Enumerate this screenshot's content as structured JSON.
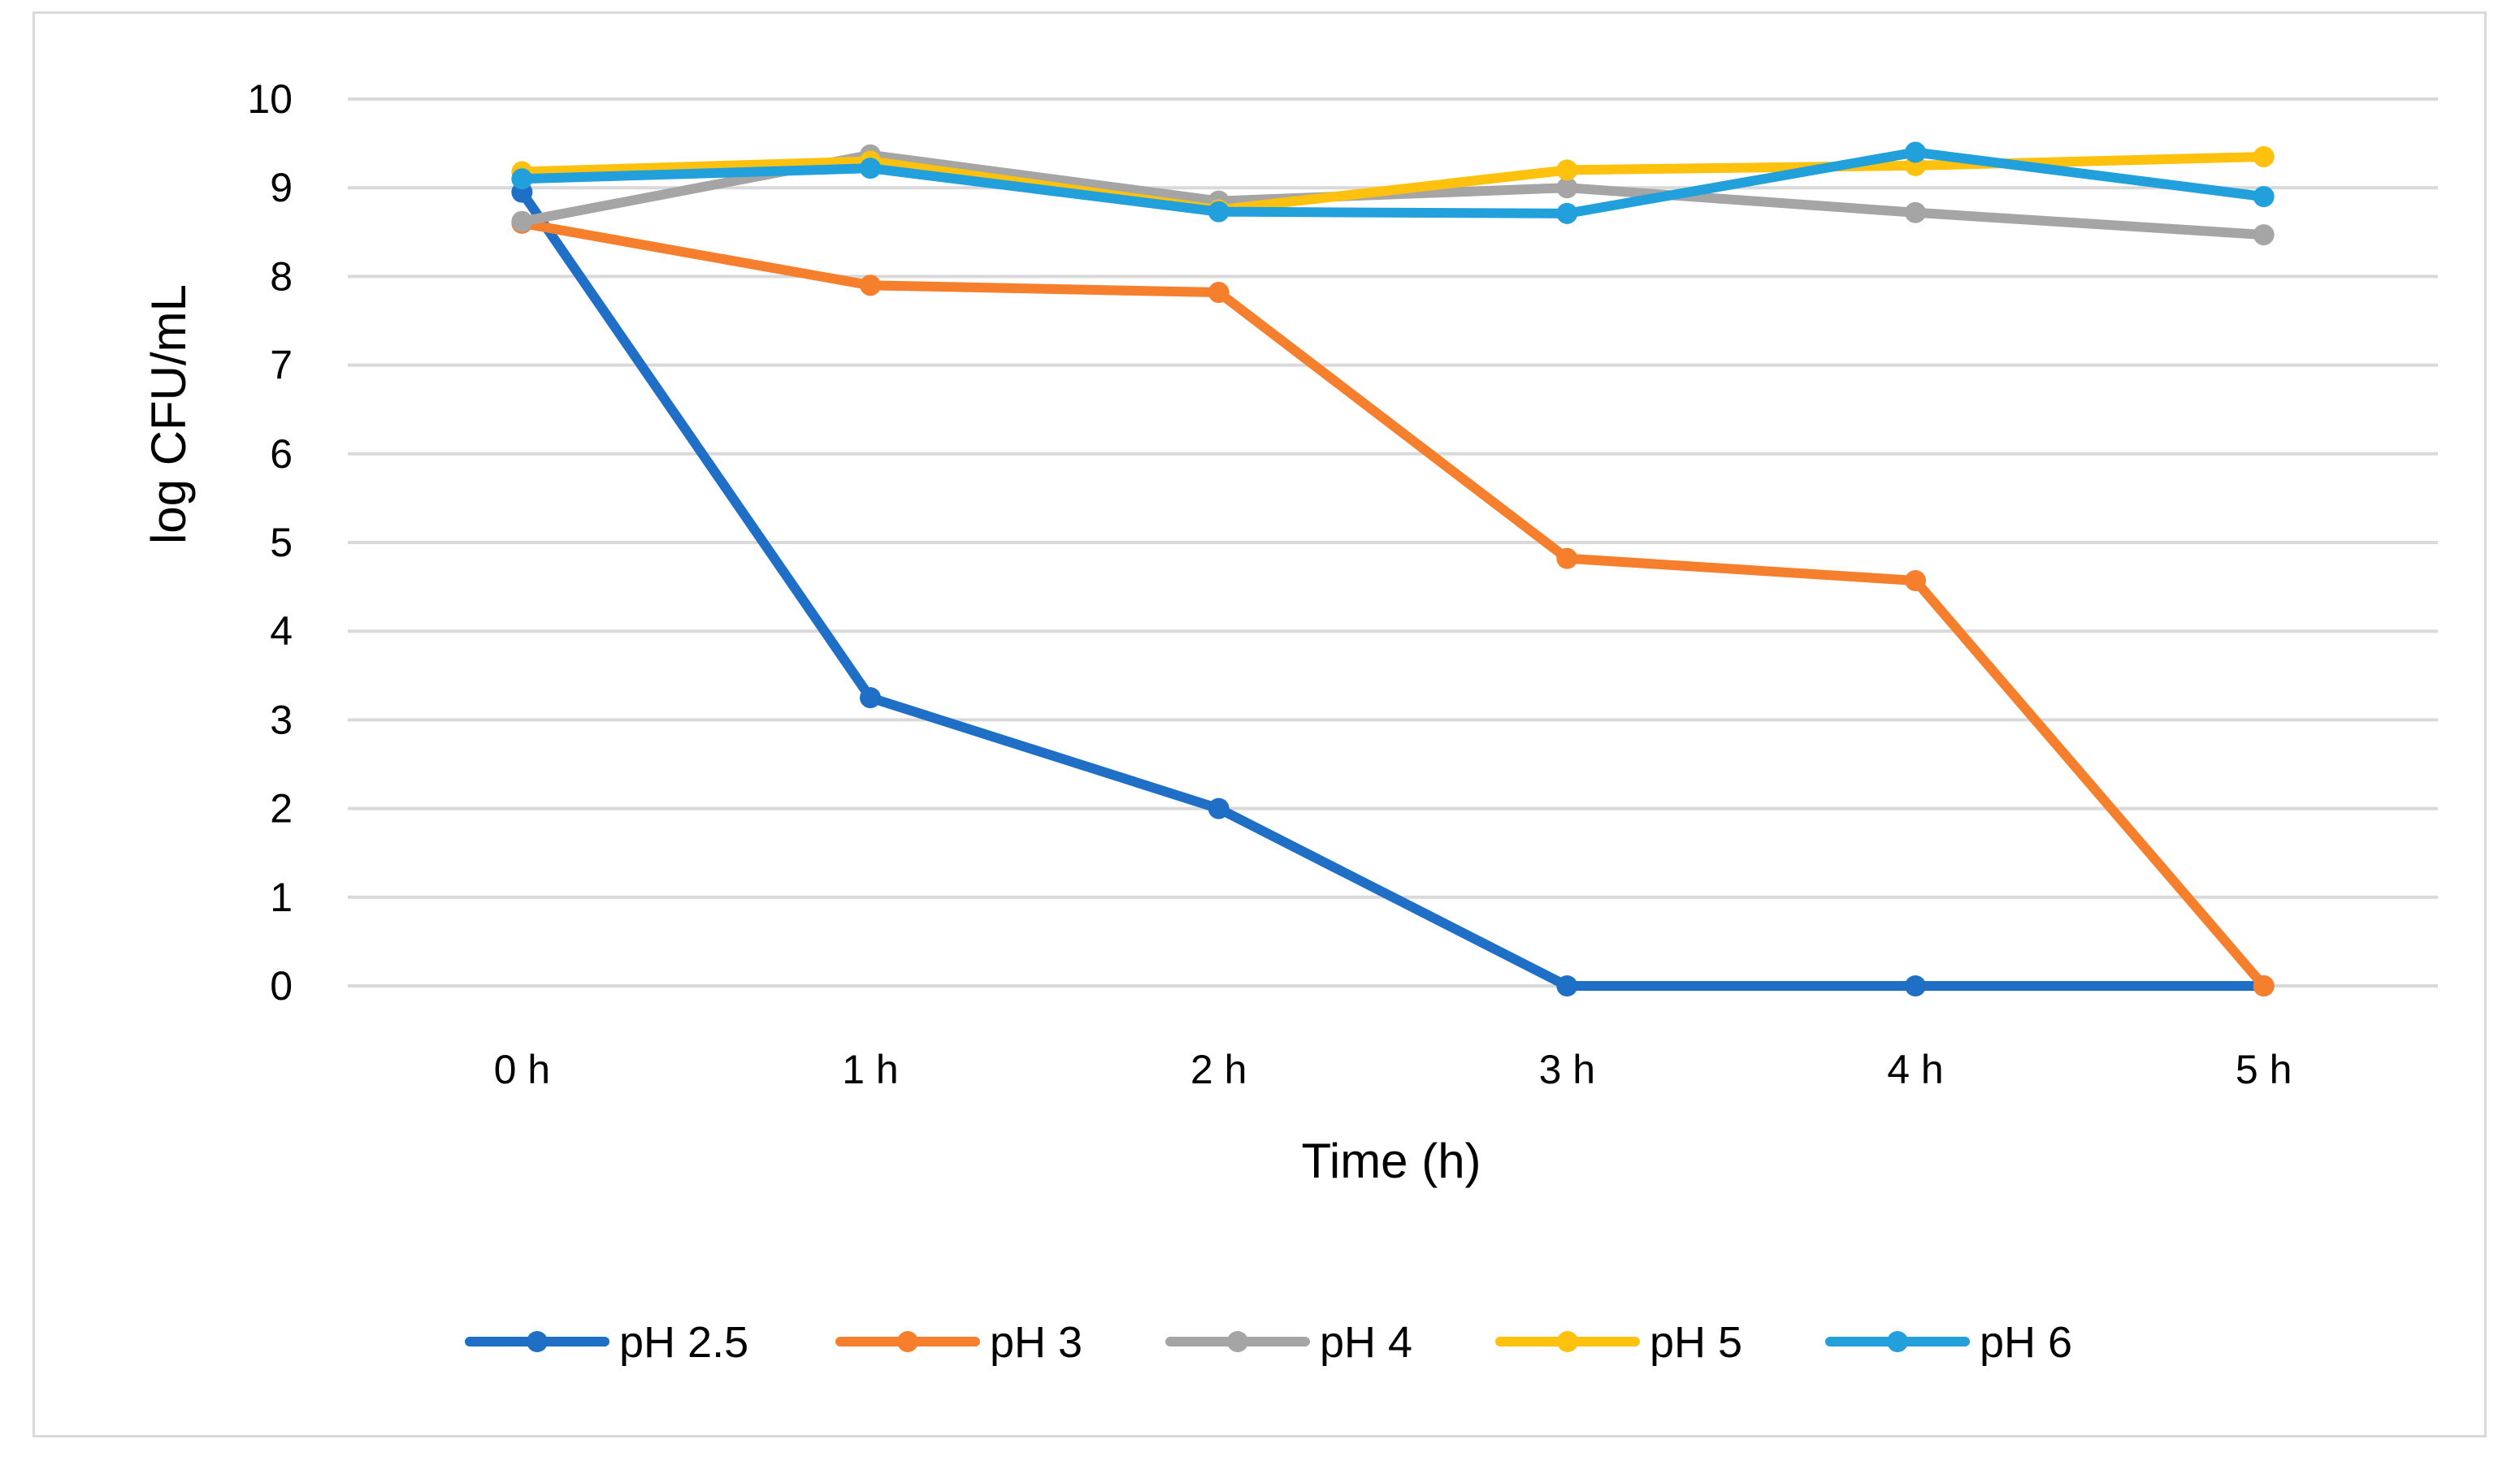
{
  "chart_data": {
    "type": "line",
    "title": "",
    "xlabel": "Time (h)",
    "ylabel": "log CFU/mL",
    "categories": [
      "0 h",
      "1 h",
      "2 h",
      "3 h",
      "4 h",
      "5 h"
    ],
    "ylim": [
      0,
      10
    ],
    "yticks": [
      0,
      1,
      2,
      3,
      4,
      5,
      6,
      7,
      8,
      9,
      10
    ],
    "grid": true,
    "legend_position": "bottom",
    "series": [
      {
        "name": "pH 2.5",
        "color": "#1f6fc6",
        "values": [
          8.95,
          3.25,
          2.0,
          0,
          0,
          0
        ]
      },
      {
        "name": "pH 3",
        "color": "#f57f2c",
        "values": [
          8.6,
          7.9,
          7.82,
          4.82,
          4.57,
          0
        ]
      },
      {
        "name": "pH 4",
        "color": "#a5a5a5",
        "values": [
          8.62,
          9.37,
          8.85,
          9.0,
          8.72,
          8.47
        ]
      },
      {
        "name": "pH 5",
        "color": "#fdc10e",
        "values": [
          9.18,
          9.3,
          8.75,
          9.2,
          9.25,
          9.35
        ]
      },
      {
        "name": "pH 6",
        "color": "#21a0dc",
        "values": [
          9.1,
          9.22,
          8.73,
          8.71,
          9.4,
          8.9
        ]
      }
    ]
  }
}
